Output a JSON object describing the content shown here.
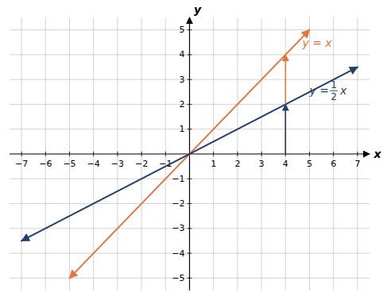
{
  "chart_data": {
    "type": "line",
    "xlabel": "x",
    "ylabel": "y",
    "xlim": [
      -7.5,
      7.5
    ],
    "ylim": [
      -5.5,
      5.5
    ],
    "xticks": [
      {
        "value": -7,
        "label": "−7"
      },
      {
        "value": -6,
        "label": "−6"
      },
      {
        "value": -5,
        "label": "−5"
      },
      {
        "value": -4,
        "label": "−4"
      },
      {
        "value": -3,
        "label": "−3"
      },
      {
        "value": -2,
        "label": "−2"
      },
      {
        "value": -1,
        "label": "−1"
      },
      1,
      2,
      3,
      4,
      5,
      6,
      7
    ],
    "yticks": [
      {
        "value": -5,
        "label": "−5"
      },
      {
        "value": -4,
        "label": "−4"
      },
      {
        "value": -3,
        "label": "−3"
      },
      {
        "value": -2,
        "label": "−2"
      },
      {
        "value": -1,
        "label": "−1"
      },
      1,
      2,
      3,
      4,
      5
    ],
    "grid": true,
    "series": [
      {
        "color": "#E8733A",
        "x": [
          -5,
          5
        ],
        "values": [
          -5,
          5
        ]
      },
      {
        "color": "#1F3F6E",
        "x": [
          -7,
          7
        ],
        "values": [
          -3.5,
          3.5
        ]
      }
    ],
    "arrows": [
      {
        "x": 4,
        "y": 4,
        "color": "#E8733A"
      },
      {
        "x": 4,
        "y": 2,
        "color": "#1F3F6E"
      }
    ],
    "annotations": [
      {
        "text": "y = x",
        "color": "#E8733A"
      },
      {
        "text": "y = ",
        "numerator": "1",
        "denominator": "2",
        "suffix": "x",
        "color": "#1F3F6E"
      }
    ]
  }
}
